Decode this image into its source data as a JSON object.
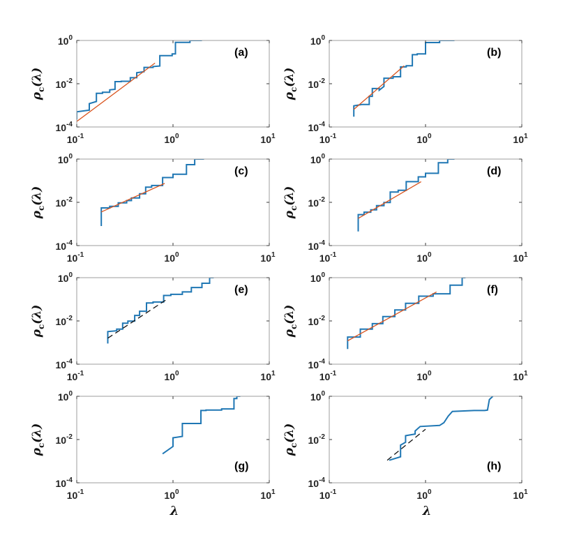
{
  "chart_data": [
    {
      "panel": "(a)",
      "type": "line",
      "xscale": "log",
      "yscale": "log",
      "xlim": [
        0.1,
        10
      ],
      "ylim": [
        0.0001,
        1
      ],
      "xticks": [
        {
          "v": 0.1,
          "b": "10",
          "e": "-1"
        },
        {
          "v": 1,
          "b": "10",
          "e": "0"
        },
        {
          "v": 10,
          "b": "10",
          "e": "1"
        }
      ],
      "yticks": [
        {
          "v": 0.0001,
          "b": "10",
          "e": "-4"
        },
        {
          "v": 0.01,
          "b": "10",
          "e": "-2"
        },
        {
          "v": 1,
          "b": "10",
          "e": "0"
        }
      ],
      "ylabel": {
        "main": "ρ",
        "sub": "c",
        "arg": "(λ)"
      },
      "xlabel": "",
      "series": [
        {
          "style": "step",
          "color": "#1f77b4",
          "x": [
            0.1,
            0.1,
            0.135,
            0.135,
            0.16,
            0.16,
            0.185,
            0.185,
            0.22,
            0.22,
            0.25,
            0.25,
            0.29,
            0.29,
            0.36,
            0.36,
            0.42,
            0.42,
            0.5,
            0.5,
            0.62,
            0.62,
            0.73,
            0.73,
            0.98,
            0.98,
            1.06,
            1.06,
            1.5,
            1.5,
            2.0
          ],
          "y": [
            0.00022,
            0.0005,
            0.0006,
            0.0012,
            0.0015,
            0.0036,
            0.0036,
            0.004,
            0.004,
            0.0052,
            0.0055,
            0.0125,
            0.0125,
            0.013,
            0.013,
            0.019,
            0.019,
            0.032,
            0.036,
            0.057,
            0.057,
            0.062,
            0.066,
            0.2,
            0.2,
            0.24,
            0.24,
            0.82,
            0.82,
            1.0,
            1.0
          ]
        },
        {
          "style": "fit",
          "color": "#d9541e",
          "x": [
            0.1,
            0.65
          ],
          "y": [
            0.00018,
            0.09
          ]
        }
      ]
    },
    {
      "panel": "(b)",
      "type": "line",
      "xscale": "log",
      "yscale": "log",
      "xlim": [
        0.1,
        10
      ],
      "ylim": [
        0.0001,
        1
      ],
      "xticks": [
        {
          "v": 0.1,
          "b": "10",
          "e": "-1"
        },
        {
          "v": 1,
          "b": "10",
          "e": "0"
        },
        {
          "v": 10,
          "b": "10",
          "e": "1"
        }
      ],
      "yticks": [
        {
          "v": 0.0001,
          "b": "10",
          "e": "-4"
        },
        {
          "v": 0.01,
          "b": "10",
          "e": "-2"
        },
        {
          "v": 1,
          "b": "10",
          "e": "0"
        }
      ],
      "ylabel": {
        "main": "ρ",
        "sub": "c",
        "arg": "(λ)"
      },
      "xlabel": "",
      "series": [
        {
          "style": "step",
          "color": "#1f77b4",
          "x": [
            0.18,
            0.18,
            0.22,
            0.22,
            0.26,
            0.26,
            0.28,
            0.28,
            0.33,
            0.33,
            0.37,
            0.37,
            0.46,
            0.46,
            0.55,
            0.55,
            0.63,
            0.63,
            0.73,
            0.73,
            0.82,
            0.82,
            1.0,
            1.0,
            1.4,
            1.4,
            1.6,
            1.6,
            2.0
          ],
          "y": [
            0.0003,
            0.00095,
            0.0011,
            0.0011,
            0.0011,
            0.0026,
            0.0026,
            0.006,
            0.006,
            0.005,
            0.0075,
            0.018,
            0.018,
            0.021,
            0.021,
            0.06,
            0.06,
            0.068,
            0.068,
            0.22,
            0.22,
            0.24,
            0.24,
            0.8,
            0.8,
            1.0,
            1.0,
            1.0,
            1.0
          ]
        },
        {
          "style": "fit",
          "color": "#d9541e",
          "x": [
            0.18,
            0.6
          ],
          "y": [
            0.00065,
            0.068
          ]
        }
      ]
    },
    {
      "panel": "(c)",
      "type": "line",
      "xscale": "log",
      "yscale": "log",
      "xlim": [
        0.1,
        10
      ],
      "ylim": [
        0.0001,
        1
      ],
      "xticks": [
        {
          "v": 0.1,
          "b": "10",
          "e": "-1"
        },
        {
          "v": 1,
          "b": "10",
          "e": "0"
        },
        {
          "v": 10,
          "b": "10",
          "e": "1"
        }
      ],
      "yticks": [
        {
          "v": 0.0001,
          "b": "10",
          "e": "-4"
        },
        {
          "v": 0.01,
          "b": "10",
          "e": "-2"
        },
        {
          "v": 1,
          "b": "10",
          "e": "0"
        }
      ],
      "ylabel": {
        "main": "ρ",
        "sub": "c",
        "arg": "(λ)"
      },
      "xlabel": "",
      "series": [
        {
          "style": "step",
          "color": "#1f77b4",
          "x": [
            0.18,
            0.18,
            0.22,
            0.22,
            0.27,
            0.27,
            0.33,
            0.33,
            0.37,
            0.37,
            0.45,
            0.45,
            0.52,
            0.52,
            0.6,
            0.6,
            0.78,
            0.78,
            1.0,
            1.0,
            1.38,
            1.38,
            1.68,
            1.68,
            2.1
          ],
          "y": [
            0.0008,
            0.0055,
            0.0055,
            0.0065,
            0.0065,
            0.0095,
            0.0095,
            0.012,
            0.012,
            0.016,
            0.016,
            0.025,
            0.025,
            0.05,
            0.05,
            0.06,
            0.06,
            0.14,
            0.14,
            0.2,
            0.2,
            0.55,
            0.55,
            1.0,
            1.0
          ]
        },
        {
          "style": "fit",
          "color": "#d9541e",
          "x": [
            0.18,
            0.82
          ],
          "y": [
            0.0036,
            0.075
          ]
        }
      ]
    },
    {
      "panel": "(d)",
      "type": "line",
      "xscale": "log",
      "yscale": "log",
      "xlim": [
        0.1,
        10
      ],
      "ylim": [
        0.0001,
        1
      ],
      "xticks": [
        {
          "v": 0.1,
          "b": "10",
          "e": "-1"
        },
        {
          "v": 1,
          "b": "10",
          "e": "0"
        },
        {
          "v": 10,
          "b": "10",
          "e": "1"
        }
      ],
      "yticks": [
        {
          "v": 0.0001,
          "b": "10",
          "e": "-4"
        },
        {
          "v": 0.01,
          "b": "10",
          "e": "-2"
        },
        {
          "v": 1,
          "b": "10",
          "e": "0"
        }
      ],
      "ylabel": {
        "main": "ρ",
        "sub": "c",
        "arg": "(λ)"
      },
      "xlabel": "",
      "series": [
        {
          "style": "step",
          "color": "#1f77b4",
          "x": [
            0.2,
            0.2,
            0.23,
            0.23,
            0.27,
            0.27,
            0.31,
            0.31,
            0.37,
            0.37,
            0.43,
            0.43,
            0.52,
            0.52,
            0.63,
            0.63,
            0.84,
            0.84,
            1.0,
            1.0,
            1.36,
            1.36,
            1.7,
            1.7,
            2.0
          ],
          "y": [
            0.00045,
            0.0027,
            0.0027,
            0.0035,
            0.0035,
            0.0045,
            0.0045,
            0.007,
            0.007,
            0.0098,
            0.0098,
            0.03,
            0.03,
            0.036,
            0.036,
            0.09,
            0.09,
            0.15,
            0.15,
            0.22,
            0.22,
            0.68,
            0.68,
            1.0,
            1.0
          ]
        },
        {
          "style": "fit",
          "color": "#d9541e",
          "x": [
            0.2,
            0.9
          ],
          "y": [
            0.0018,
            0.09
          ]
        }
      ]
    },
    {
      "panel": "(e)",
      "type": "line",
      "xscale": "log",
      "yscale": "log",
      "xlim": [
        0.1,
        10
      ],
      "ylim": [
        0.0001,
        1
      ],
      "xticks": [
        {
          "v": 0.1,
          "b": "10",
          "e": "-1"
        },
        {
          "v": 1,
          "b": "10",
          "e": "0"
        },
        {
          "v": 10,
          "b": "10",
          "e": "1"
        }
      ],
      "yticks": [
        {
          "v": 0.0001,
          "b": "10",
          "e": "-4"
        },
        {
          "v": 0.01,
          "b": "10",
          "e": "-2"
        },
        {
          "v": 1,
          "b": "10",
          "e": "0"
        }
      ],
      "ylabel": {
        "main": "ρ",
        "sub": "c",
        "arg": "(λ)"
      },
      "xlabel": "",
      "series": [
        {
          "style": "step",
          "color": "#1f77b4",
          "x": [
            0.21,
            0.21,
            0.26,
            0.26,
            0.3,
            0.3,
            0.34,
            0.34,
            0.4,
            0.4,
            0.45,
            0.45,
            0.53,
            0.53,
            0.62,
            0.62,
            0.8,
            0.8,
            0.95,
            0.95,
            1.25,
            1.25,
            1.55,
            1.55,
            2.0,
            2.0,
            2.4,
            2.4,
            2.65
          ],
          "y": [
            0.0009,
            0.0032,
            0.0035,
            0.0042,
            0.0042,
            0.0078,
            0.0078,
            0.0098,
            0.0098,
            0.018,
            0.018,
            0.028,
            0.028,
            0.068,
            0.068,
            0.075,
            0.075,
            0.15,
            0.15,
            0.17,
            0.17,
            0.22,
            0.22,
            0.35,
            0.35,
            0.55,
            0.55,
            1.0,
            1.0
          ]
        },
        {
          "style": "fit-dashed",
          "color": "#111111",
          "x": [
            0.21,
            0.85
          ],
          "y": [
            0.0016,
            0.095
          ]
        }
      ]
    },
    {
      "panel": "(f)",
      "type": "line",
      "xscale": "log",
      "yscale": "log",
      "xlim": [
        0.1,
        10
      ],
      "ylim": [
        0.0001,
        1
      ],
      "xticks": [
        {
          "v": 0.1,
          "b": "10",
          "e": "-1"
        },
        {
          "v": 1,
          "b": "10",
          "e": "0"
        },
        {
          "v": 10,
          "b": "10",
          "e": "1"
        }
      ],
      "yticks": [
        {
          "v": 0.0001,
          "b": "10",
          "e": "-4"
        },
        {
          "v": 0.01,
          "b": "10",
          "e": "-2"
        },
        {
          "v": 1,
          "b": "10",
          "e": "0"
        }
      ],
      "ylabel": {
        "main": "ρ",
        "sub": "c",
        "arg": "(λ)"
      },
      "xlabel": "",
      "series": [
        {
          "style": "step",
          "color": "#1f77b4",
          "x": [
            0.155,
            0.155,
            0.21,
            0.21,
            0.28,
            0.28,
            0.36,
            0.36,
            0.48,
            0.48,
            0.62,
            0.62,
            0.85,
            0.85,
            1.2,
            1.2,
            1.8,
            1.8,
            2.4,
            2.4,
            2.6
          ],
          "y": [
            0.0005,
            0.0018,
            0.0018,
            0.0042,
            0.0042,
            0.0075,
            0.0075,
            0.016,
            0.016,
            0.032,
            0.032,
            0.065,
            0.065,
            0.14,
            0.14,
            0.18,
            0.18,
            0.45,
            0.45,
            1.0,
            1.0
          ]
        },
        {
          "style": "fit",
          "color": "#d9541e",
          "x": [
            0.155,
            1.3
          ],
          "y": [
            0.0012,
            0.22
          ]
        }
      ]
    },
    {
      "panel": "(g)",
      "type": "line",
      "xscale": "log",
      "yscale": "log",
      "xlim": [
        0.1,
        10
      ],
      "ylim": [
        0.0001,
        1
      ],
      "xticks": [
        {
          "v": 0.1,
          "b": "10",
          "e": "-1"
        },
        {
          "v": 1,
          "b": "10",
          "e": "0"
        },
        {
          "v": 10,
          "b": "10",
          "e": "1"
        }
      ],
      "yticks": [
        {
          "v": 0.0001,
          "b": "10",
          "e": "-4"
        },
        {
          "v": 0.01,
          "b": "10",
          "e": "-2"
        },
        {
          "v": 1,
          "b": "10",
          "e": "0"
        }
      ],
      "ylabel": {
        "main": "ρ",
        "sub": "c",
        "arg": "(λ)"
      },
      "xlabel": "λ",
      "series": [
        {
          "style": "step",
          "color": "#1f77b4",
          "x": [
            0.78,
            1.0,
            1.0,
            1.25,
            1.25,
            1.95,
            1.95,
            2.2,
            2.2,
            3.2,
            3.2,
            4.3,
            4.3,
            4.6,
            4.6,
            5.0
          ],
          "y": [
            0.0022,
            0.0048,
            0.012,
            0.014,
            0.055,
            0.055,
            0.22,
            0.22,
            0.23,
            0.23,
            0.26,
            0.26,
            0.78,
            0.78,
            1.0,
            1.0
          ]
        }
      ]
    },
    {
      "panel": "(h)",
      "type": "line",
      "xscale": "log",
      "yscale": "log",
      "xlim": [
        0.1,
        10
      ],
      "ylim": [
        0.0001,
        1
      ],
      "xticks": [
        {
          "v": 0.1,
          "b": "10",
          "e": "-1"
        },
        {
          "v": 1,
          "b": "10",
          "e": "0"
        },
        {
          "v": 10,
          "b": "10",
          "e": "1"
        }
      ],
      "yticks": [
        {
          "v": 0.0001,
          "b": "10",
          "e": "-4"
        },
        {
          "v": 0.01,
          "b": "10",
          "e": "-2"
        },
        {
          "v": 1,
          "b": "10",
          "e": "0"
        }
      ],
      "ylabel": {
        "main": "ρ",
        "sub": "c",
        "arg": "(λ)"
      },
      "xlabel": "λ",
      "series": [
        {
          "style": "step",
          "color": "#1f77b4",
          "x": [
            0.42,
            0.55,
            0.55,
            0.62,
            0.62,
            0.78,
            0.78,
            0.88,
            0.88,
            1.4,
            1.4,
            1.55,
            1.55,
            1.72,
            1.72,
            1.9,
            1.9,
            3.2,
            3.2,
            4.1,
            4.1,
            4.4,
            4.4,
            4.6,
            4.6,
            5.0
          ],
          "y": [
            0.0011,
            0.0016,
            0.0055,
            0.0075,
            0.015,
            0.018,
            0.025,
            0.04,
            0.04,
            0.045,
            0.045,
            0.06,
            0.06,
            0.12,
            0.12,
            0.2,
            0.2,
            0.22,
            0.22,
            0.22,
            0.22,
            0.23,
            0.23,
            0.7,
            0.7,
            1.0
          ]
        },
        {
          "style": "fit-dashed",
          "color": "#111111",
          "x": [
            0.4,
            1.0
          ],
          "y": [
            0.0011,
            0.03
          ]
        }
      ]
    }
  ]
}
